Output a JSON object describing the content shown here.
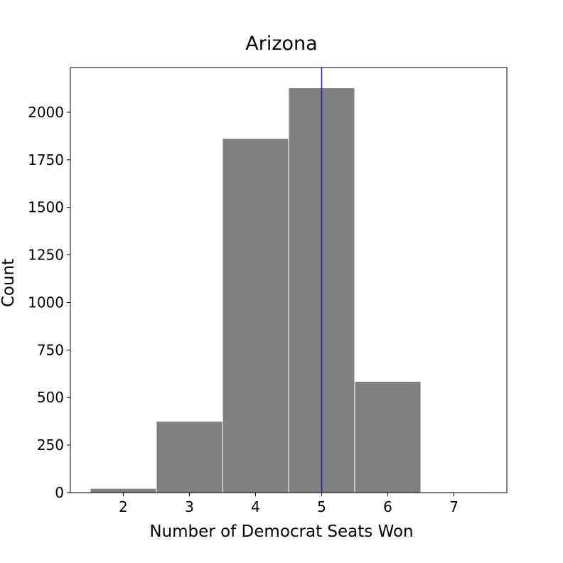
{
  "chart_data": {
    "type": "bar",
    "title": "Arizona",
    "xlabel": "Number of Democrat Seats Won",
    "ylabel": "Count",
    "categories": [
      "2",
      "3",
      "4",
      "5",
      "6",
      "7"
    ],
    "x": [
      2,
      3,
      4,
      5,
      6,
      7
    ],
    "values": [
      22,
      375,
      1862,
      2128,
      585,
      4
    ],
    "xlim": [
      1.2,
      7.8
    ],
    "ylim": [
      0,
      2235
    ],
    "xticks": [
      2,
      3,
      4,
      5,
      6,
      7
    ],
    "xtick_labels": [
      "2",
      "3",
      "4",
      "5",
      "6",
      "7"
    ],
    "yticks": [
      0,
      250,
      500,
      750,
      1000,
      1250,
      1500,
      1750,
      2000
    ],
    "ytick_labels": [
      "0",
      "250",
      "500",
      "750",
      "1000",
      "1250",
      "1500",
      "1750",
      "2000"
    ],
    "reference_line": {
      "x": 5,
      "color": "#2222bb"
    },
    "bar_color": "#808080",
    "grid": false,
    "legend": "none"
  }
}
